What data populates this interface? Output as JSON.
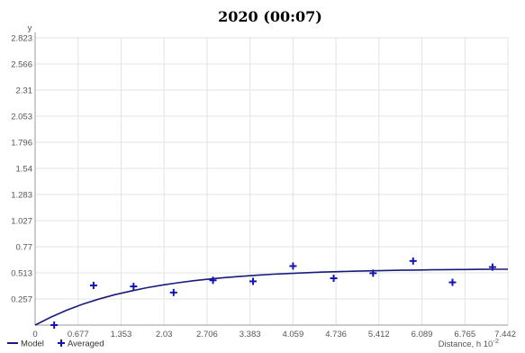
{
  "chart_data": {
    "type": "scatter",
    "title": "2020 (00:07)",
    "ylabel": "y",
    "xlabel": "Distance, h",
    "x_unit_base": "10",
    "x_unit_exp": "-2",
    "xlim": [
      0,
      7.442
    ],
    "ylim": [
      0,
      2.823
    ],
    "x_ticks": [
      "0",
      "0.677",
      "1.353",
      "2.03",
      "2.706",
      "3.383",
      "4.059",
      "4.736",
      "5.412",
      "6.089",
      "6.765",
      "7.442"
    ],
    "y_ticks": [
      "0",
      "0.257",
      "0.513",
      "0.77",
      "1.027",
      "1.283",
      "1.54",
      "1.796",
      "2.053",
      "2.31",
      "2.566",
      "2.823"
    ],
    "grid": true,
    "legend_position": "bottom-left",
    "series": [
      {
        "name": "Model",
        "kind": "line",
        "color": "#1a1a7a",
        "x": [
          0,
          0.25,
          0.5,
          0.75,
          1.0,
          1.25,
          1.5,
          1.75,
          2.0,
          2.25,
          2.5,
          2.75,
          3.0,
          3.25,
          3.5,
          3.75,
          4.0,
          4.25,
          4.5,
          4.75,
          5.0,
          5.25,
          5.5,
          5.75,
          6.0,
          6.25,
          6.5,
          6.75,
          7.0,
          7.25,
          7.442
        ],
        "y": [
          0.0,
          0.079,
          0.147,
          0.205,
          0.255,
          0.298,
          0.334,
          0.366,
          0.393,
          0.416,
          0.436,
          0.453,
          0.467,
          0.48,
          0.49,
          0.5,
          0.507,
          0.514,
          0.52,
          0.525,
          0.529,
          0.533,
          0.536,
          0.539,
          0.541,
          0.543,
          0.545,
          0.546,
          0.548,
          0.549,
          0.549
        ]
      },
      {
        "name": "Averaged",
        "kind": "points",
        "color": "#1414b4",
        "x": [
          0.3,
          0.92,
          1.55,
          2.18,
          2.8,
          3.43,
          4.06,
          4.7,
          5.32,
          5.95,
          6.57,
          7.2
        ],
        "y": [
          0.0,
          0.39,
          0.38,
          0.32,
          0.44,
          0.43,
          0.58,
          0.46,
          0.51,
          0.63,
          0.42,
          0.57
        ]
      }
    ]
  }
}
